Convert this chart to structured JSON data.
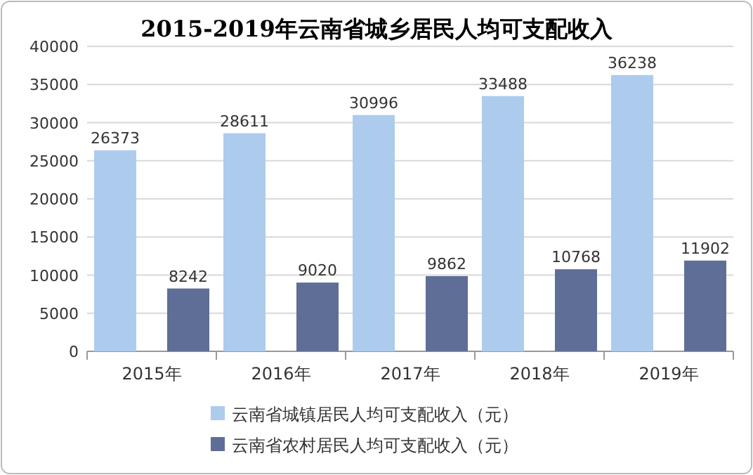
{
  "chart_data": {
    "type": "bar",
    "title": "2015-2019年云南省城乡居民人均可支配收入",
    "categories": [
      "2015年",
      "2016年",
      "2017年",
      "2018年",
      "2019年"
    ],
    "series": [
      {
        "name": "云南省城镇居民人均可支配收入（元）",
        "color": "#adcbed",
        "values": [
          26373,
          28611,
          30996,
          33488,
          36238
        ]
      },
      {
        "name": "云南省农村居民人均可支配收入（元）",
        "color": "#5e6e96",
        "values": [
          8242,
          9020,
          9862,
          10768,
          11902
        ]
      }
    ],
    "ylim": [
      0,
      40000
    ],
    "yticks": [
      0,
      5000,
      10000,
      15000,
      20000,
      25000,
      30000,
      35000,
      40000
    ],
    "grid": "y",
    "legend": "bottom",
    "data_labels": true
  }
}
